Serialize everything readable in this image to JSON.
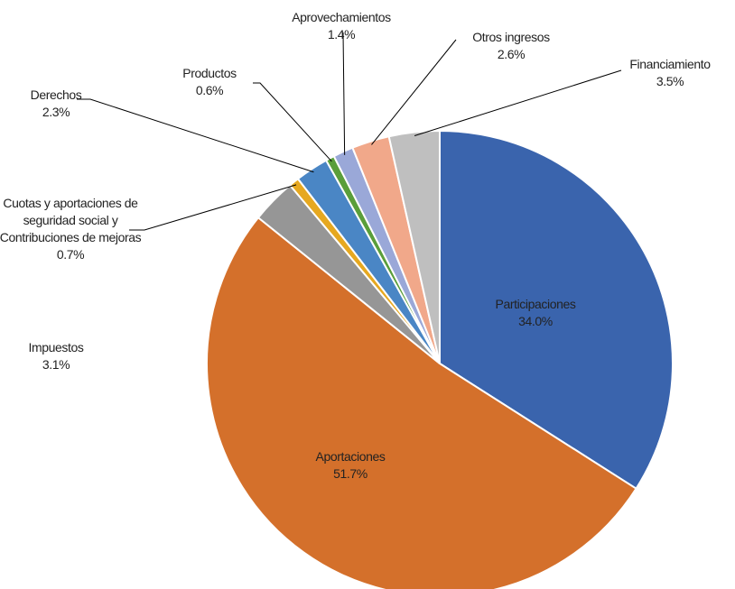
{
  "chart_data": {
    "type": "pie",
    "categories": [
      "Participaciones",
      "Aportaciones",
      "Impuestos",
      "Cuotas y aportaciones de seguridad social y Contribuciones de mejoras",
      "Derechos",
      "Productos",
      "Aprovechamientos",
      "Otros ingresos",
      "Financiamiento"
    ],
    "values": [
      34.0,
      51.7,
      3.1,
      0.7,
      2.3,
      0.6,
      1.4,
      2.6,
      3.5
    ],
    "value_labels": [
      "34.0%",
      "51.7%",
      "3.1%",
      "0.7%",
      "2.3%",
      "0.6%",
      "1.4%",
      "2.6%",
      "3.5%"
    ],
    "colors": [
      "#3a64ad",
      "#d4702b",
      "#969696",
      "#e6a820",
      "#4a86c5",
      "#5a9e3a",
      "#9aa8d8",
      "#f1a88a",
      "#bfbfbf"
    ]
  }
}
